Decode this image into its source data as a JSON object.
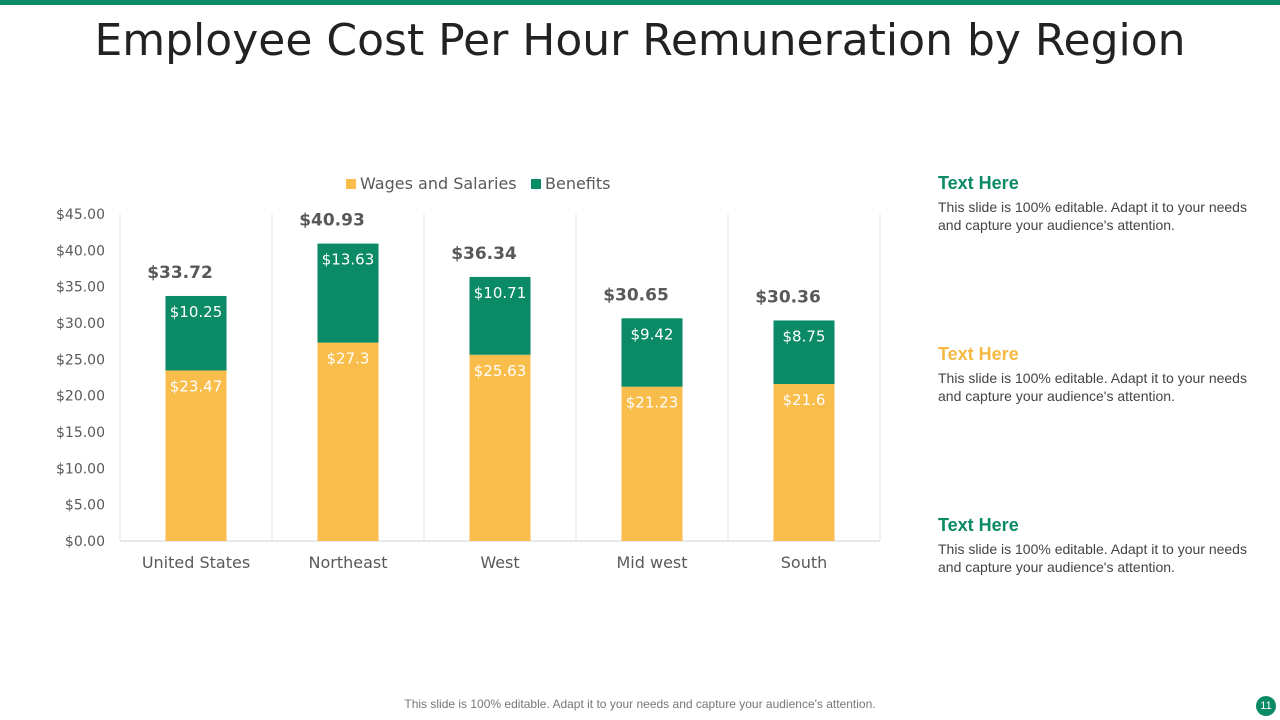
{
  "slide": {
    "title": "Employee Cost Per Hour Remuneration by Region",
    "footer": "This slide is 100% editable. Adapt it to your needs and capture your audience's attention.",
    "page_number": "11"
  },
  "side_notes": [
    {
      "heading": "Text Here",
      "body": "This slide is 100% editable. Adapt it to your needs and capture your audience's attention.",
      "color": "#0b8a66"
    },
    {
      "heading": "Text Here",
      "body": "This slide is 100% editable. Adapt it to your needs and capture your audience's attention.",
      "color": "#f5b942"
    },
    {
      "heading": "Text Here",
      "body": "This slide is 100% editable. Adapt it to your needs and capture your audience's attention.",
      "color": "#0b8a66"
    }
  ],
  "colors": {
    "accent": "#0b8a66",
    "wages": "#f8bd4a",
    "benefits": "#0b8a66"
  },
  "chart_data": {
    "type": "bar",
    "stacked": true,
    "categories": [
      "United States",
      "Northeast",
      "West",
      "Mid west",
      "South"
    ],
    "series": [
      {
        "name": "Wages and Salaries",
        "values": [
          23.47,
          27.3,
          25.63,
          21.23,
          21.6
        ],
        "labels": [
          "$23.47",
          "$27.3",
          "$25.63",
          "$21.23",
          "$21.6"
        ],
        "color": "#f8bd4a"
      },
      {
        "name": "Benefits",
        "values": [
          10.25,
          13.63,
          10.71,
          9.42,
          8.75
        ],
        "labels": [
          "$10.25",
          "$13.63",
          "$10.71",
          "$9.42",
          "$8.75"
        ],
        "color": "#0b8a66"
      }
    ],
    "totals": [
      33.72,
      40.93,
      36.34,
      30.65,
      30.36
    ],
    "total_labels": [
      "$33.72",
      "$40.93",
      "$36.34",
      "$30.65",
      "$30.36"
    ],
    "ylim": [
      0,
      45
    ],
    "yticks": [
      0,
      5,
      10,
      15,
      20,
      25,
      30,
      35,
      40,
      45
    ],
    "ytick_labels": [
      "$0.00",
      "$5.00",
      "$10.00",
      "$15.00",
      "$20.00",
      "$25.00",
      "$30.00",
      "$35.00",
      "$40.00",
      "$45.00"
    ],
    "legend_position": "top",
    "grid": "vertical separators"
  }
}
